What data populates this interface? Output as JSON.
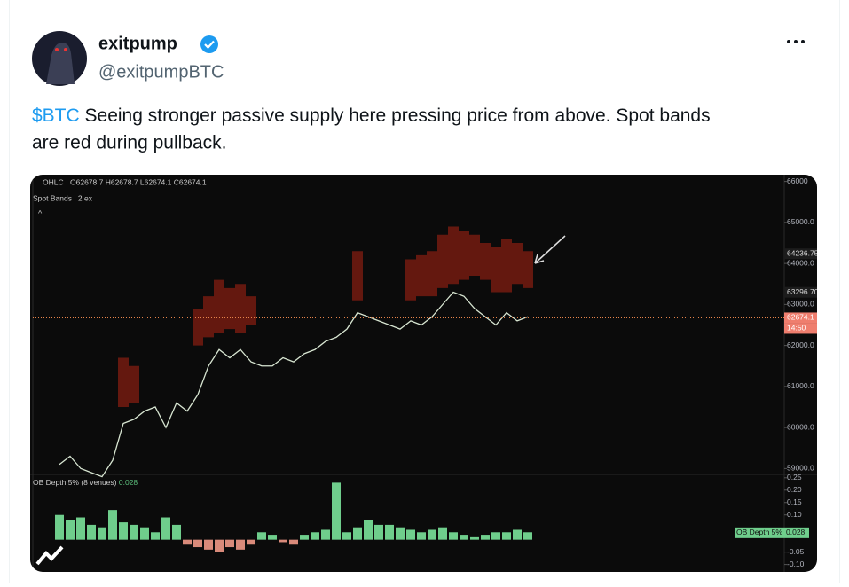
{
  "tweet": {
    "author": "exitpump",
    "handle": "@exitpumpBTC",
    "cashtag": "$BTC",
    "line1": "Seeing stronger passive supply here pressing price from above. Spot bands",
    "line2": "are red during pullback."
  },
  "chart": {
    "ohlc_label": "OHLC",
    "ohlc_values": "O62678.7 H62678.7 L62674.1 C62674.1",
    "indicator": "Spot Bands | 2 ex",
    "collapse": "^",
    "price_ylim": [
      58900,
      66100
    ],
    "price_ticks": [
      {
        "value": 66000,
        "label": "66000"
      },
      {
        "value": 65000,
        "label": "65000.0"
      },
      {
        "value": 64000,
        "label": "64000.0"
      },
      {
        "value": 63000,
        "label": "63000.0"
      },
      {
        "value": 62000,
        "label": "62000.0"
      },
      {
        "value": 61000,
        "label": "61000.0"
      },
      {
        "value": 60000,
        "label": "60000.0"
      },
      {
        "value": 59000,
        "label": "59000.0"
      }
    ],
    "markers": [
      64236.75,
      {
        "value": 63296.7,
        "label": "63296.70"
      },
      62674.1
    ],
    "countdown": "14:50",
    "price": [
      59100,
      59300,
      59000,
      58900,
      58800,
      59200,
      60100,
      60200,
      60400,
      60500,
      60000,
      60600,
      60400,
      60800,
      61500,
      61900,
      61700,
      61900,
      61600,
      61500,
      61500,
      61700,
      61600,
      61800,
      61900,
      62100,
      62200,
      62400,
      62800,
      62700,
      62600,
      62500,
      62400,
      62600,
      62500,
      62700,
      63000,
      63300,
      63200,
      62900,
      62700,
      62500,
      62800,
      62600,
      62700
    ],
    "band_top": [
      null,
      null,
      null,
      null,
      null,
      null,
      61700,
      61500,
      null,
      null,
      null,
      null,
      null,
      62900,
      63200,
      63600,
      63400,
      63500,
      63200,
      null,
      null,
      null,
      null,
      null,
      null,
      null,
      null,
      null,
      64300,
      null,
      null,
      null,
      null,
      64100,
      64200,
      64300,
      64700,
      64900,
      64800,
      64700,
      64500,
      64400,
      64600,
      64500,
      64300
    ],
    "band_bottom": [
      null,
      null,
      null,
      null,
      null,
      null,
      60500,
      60600,
      null,
      null,
      null,
      null,
      null,
      62000,
      62200,
      62300,
      62400,
      62300,
      62500,
      null,
      null,
      null,
      null,
      null,
      null,
      null,
      null,
      null,
      63100,
      null,
      null,
      null,
      null,
      63100,
      63200,
      63200,
      63400,
      63500,
      63600,
      63700,
      63600,
      63300,
      63300,
      63500,
      63400
    ],
    "depth_title": "OB Depth 5% (8 venues)",
    "depth_last": 0.028,
    "depth_tag": "OB Depth 5%",
    "depth_ylim": [
      -0.13,
      0.26
    ],
    "depth_ticks": [
      0.25,
      {
        "value": 0.2,
        "label": "0.20"
      },
      0.15,
      {
        "value": 0.1,
        "label": "0.10"
      },
      -0.05,
      {
        "value": -0.1,
        "label": "-0.10"
      }
    ],
    "depth": [
      0.1,
      0.08,
      0.09,
      0.06,
      0.05,
      0.12,
      0.07,
      0.06,
      0.05,
      0.03,
      0.09,
      0.06,
      -0.02,
      -0.03,
      -0.04,
      -0.05,
      -0.03,
      -0.04,
      -0.02,
      0.03,
      0.02,
      -0.01,
      -0.02,
      0.02,
      0.03,
      0.04,
      0.23,
      0.03,
      0.05,
      0.08,
      0.06,
      0.06,
      0.05,
      0.04,
      0.03,
      0.04,
      0.05,
      0.03,
      0.02,
      0.01,
      0.02,
      0.03,
      0.03,
      0.04,
      0.03
    ]
  }
}
